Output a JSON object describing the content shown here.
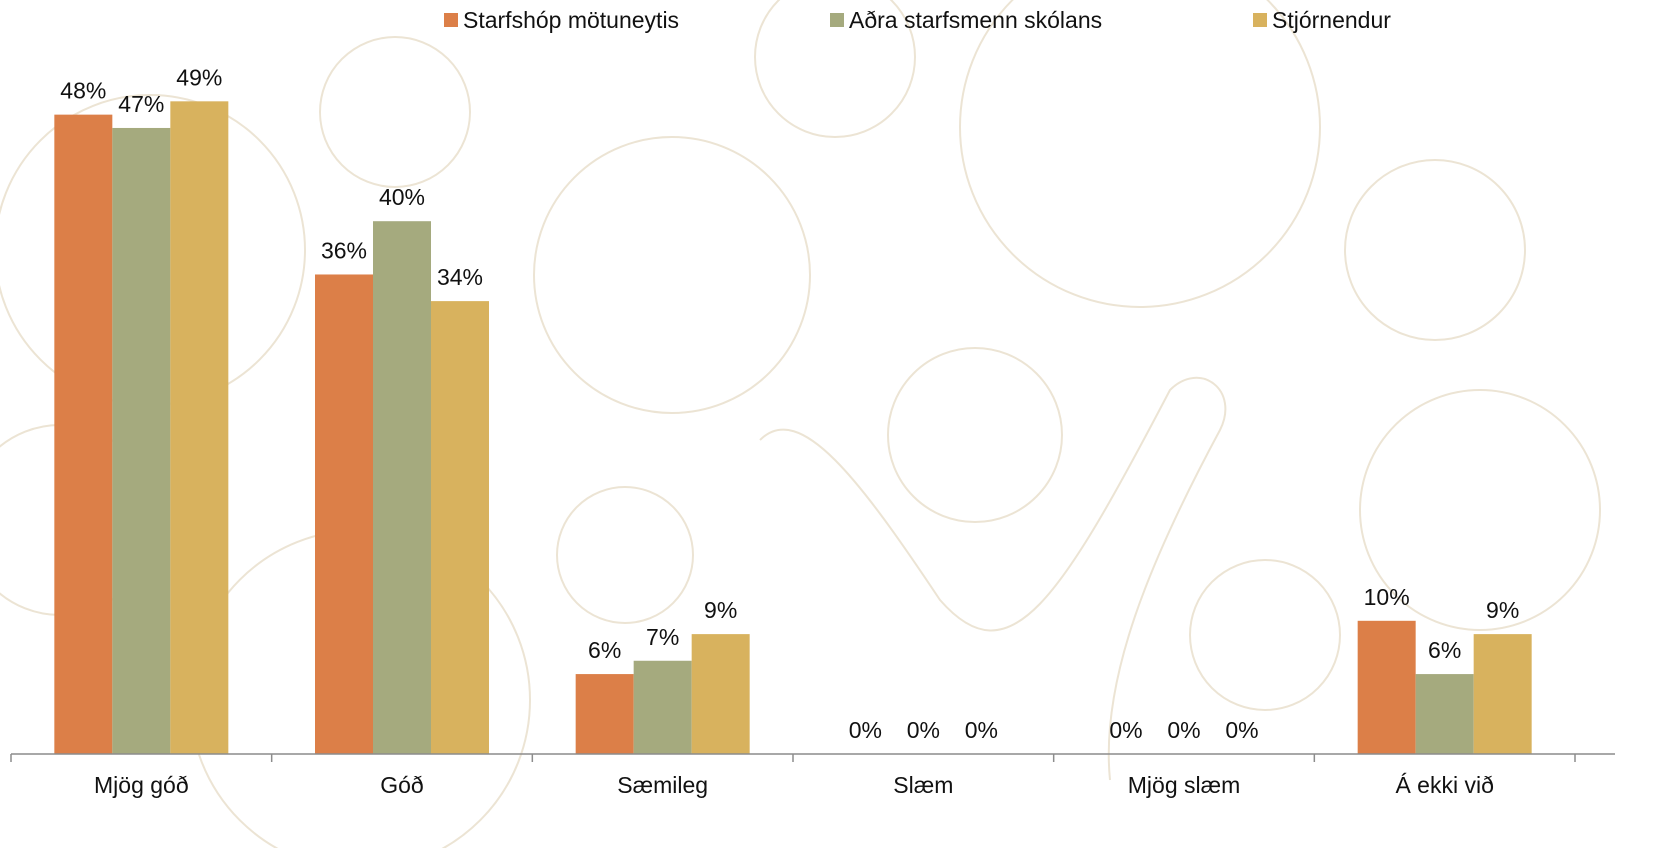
{
  "chart_data": {
    "type": "bar",
    "categories": [
      "Mjög góð",
      "Góð",
      "Sæmileg",
      "Slæm",
      "Mjög slæm",
      "Á ekki við"
    ],
    "series": [
      {
        "name": "Starfshóp mötuneytis",
        "color": "#dc7f48",
        "values": [
          48,
          36,
          6,
          0,
          0,
          10
        ],
        "labels": [
          "48%",
          "36%",
          "6%",
          "0%",
          "0%",
          "10%"
        ]
      },
      {
        "name": "Aðra starfsmenn skólans",
        "color": "#a5aa7e",
        "values": [
          47,
          40,
          7,
          0,
          0,
          6
        ],
        "labels": [
          "47%",
          "40%",
          "7%",
          "0%",
          "0%",
          "6%"
        ]
      },
      {
        "name": "Stjórnendur",
        "color": "#d8b25e",
        "values": [
          49,
          34,
          9,
          0,
          0,
          9
        ],
        "labels": [
          "49%",
          "34%",
          "9%",
          "0%",
          "0%",
          "9%"
        ]
      }
    ],
    "ylim": [
      0,
      50
    ],
    "grid": false,
    "legend_position": "top-center",
    "axis_color": "#8c8c8c",
    "decoration_color": "#ece4d4"
  }
}
